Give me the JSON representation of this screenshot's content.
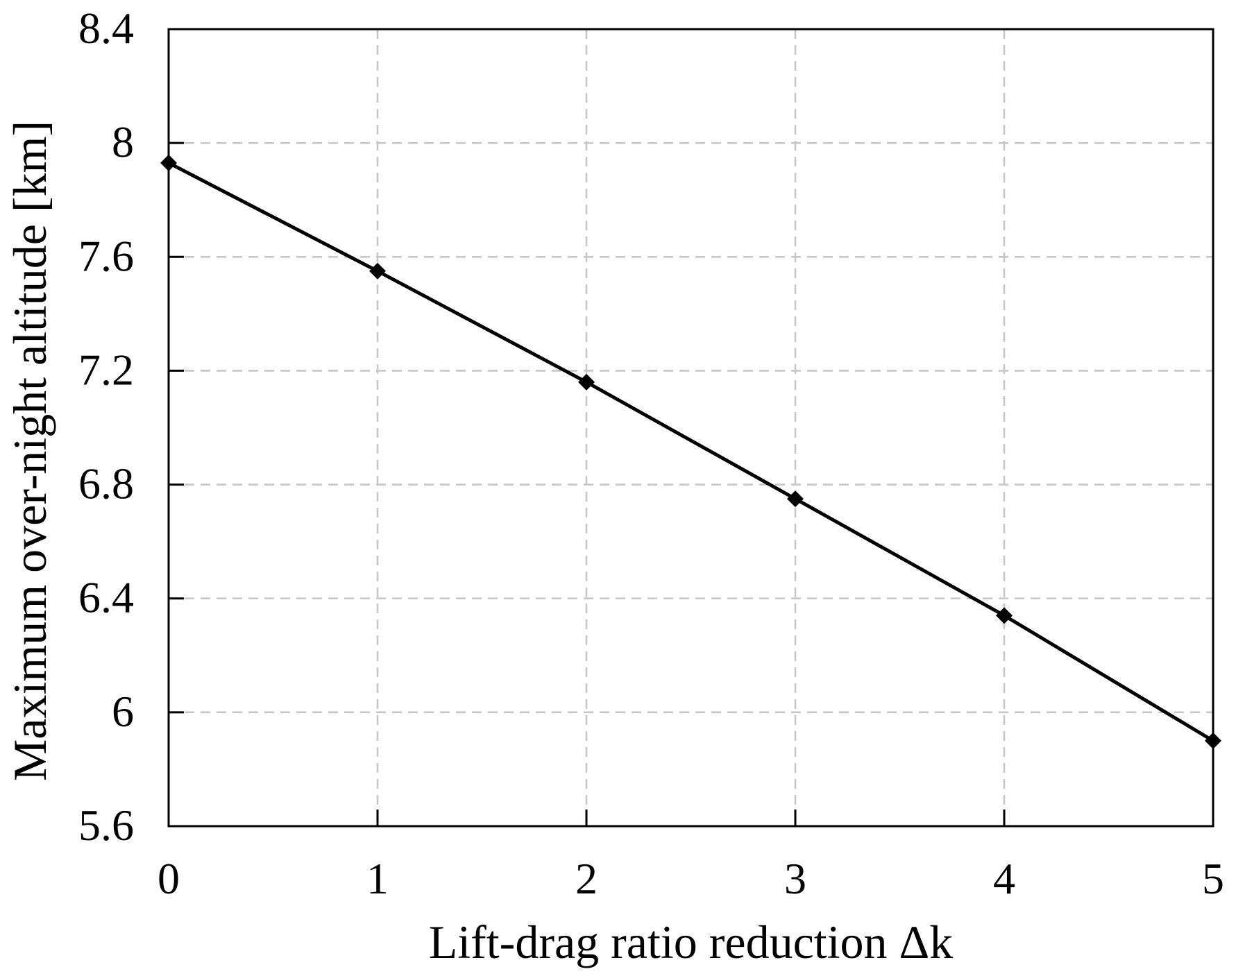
{
  "figure": {
    "background": "#ffffff"
  },
  "chart_data": {
    "type": "line",
    "title": "",
    "xlabel": "Lift-drag ratio reduction Δk",
    "ylabel": "Maximum over-night altitude [km]",
    "x": [
      0,
      1,
      2,
      3,
      4,
      5
    ],
    "series": [
      {
        "name": "Maximum over-night altitude",
        "values": [
          7.93,
          7.55,
          7.16,
          6.75,
          6.34,
          5.9
        ],
        "color": "#000000",
        "marker": "diamond",
        "line_width": 5
      }
    ],
    "xlim": [
      0,
      5
    ],
    "ylim": [
      5.6,
      8.4
    ],
    "xticks": [
      0,
      1,
      2,
      3,
      4,
      5
    ],
    "yticks": [
      5.6,
      6,
      6.4,
      6.8,
      7.2,
      7.6,
      8,
      8.4
    ],
    "grid": {
      "show": true,
      "style": "dashed",
      "color": "#c7c7c7"
    },
    "legend": {
      "position": "none"
    },
    "axis_color": "#000000",
    "text_color": "#000000",
    "frame": "box"
  }
}
